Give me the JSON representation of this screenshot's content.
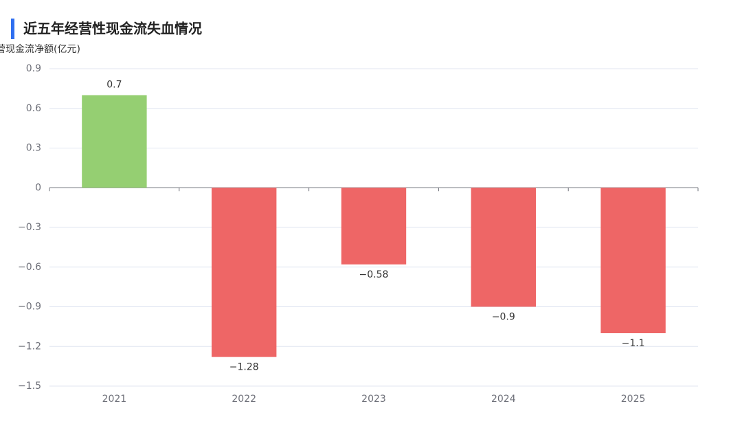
{
  "chart_data": {
    "type": "bar",
    "title": "近五年经营性现金流失血情况",
    "y_label": "营现金流净额(亿元)",
    "categories": [
      "2021",
      "2022",
      "2023",
      "2024",
      "2025"
    ],
    "values": [
      0.7,
      -1.28,
      -0.58,
      -0.9,
      -1.1
    ],
    "value_labels": [
      "0.7",
      "−1.28",
      "−0.58",
      "−0.9",
      "−1.1"
    ],
    "colors": [
      "#95cf72",
      "#ee6666",
      "#ee6666",
      "#ee6666",
      "#ee6666"
    ],
    "ylim": [
      -1.5,
      0.9
    ],
    "yticks": [
      0.9,
      0.6,
      0.3,
      0,
      {
        "value": -0.3,
        "label": "−0.3"
      },
      {
        "value": -0.6,
        "label": "−0.6"
      },
      {
        "value": -0.9,
        "label": "−0.9"
      },
      {
        "value": -1.2,
        "label": "−1.2"
      },
      {
        "value": -1.5,
        "label": "−1.5"
      }
    ],
    "grid": true
  }
}
